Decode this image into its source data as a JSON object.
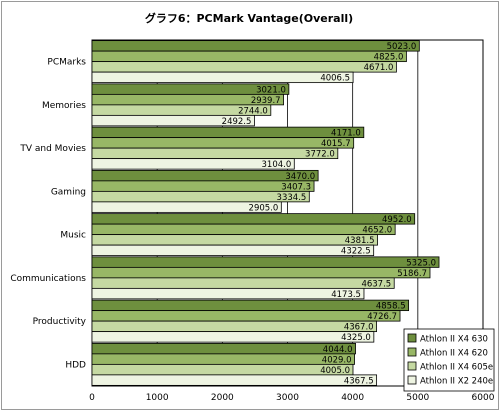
{
  "chart_data": {
    "type": "bar",
    "orientation": "horizontal",
    "title": "グラフ6：PCMark Vantage(Overall)",
    "categories": [
      "PCMarks",
      "Memories",
      "TV and Movies",
      "Gaming",
      "Music",
      "Communications",
      "Productivity",
      "HDD"
    ],
    "series": [
      {
        "name": "Athlon II X4 630",
        "color": "#6e8f3e",
        "values": [
          5023.0,
          3021.0,
          4171.0,
          3470.0,
          4952.0,
          5325.0,
          4858.5,
          4044.0
        ]
      },
      {
        "name": "Athlon II X4 620",
        "color": "#98b766",
        "values": [
          4825.0,
          2939.7,
          4015.7,
          3407.3,
          4652.0,
          5186.7,
          4726.7,
          4029.0
        ]
      },
      {
        "name": "Athlon II X4 605e",
        "color": "#c5d9a2",
        "values": [
          4671.0,
          2744.0,
          3772.0,
          3334.5,
          4381.5,
          4637.5,
          4367.0,
          4005.0
        ]
      },
      {
        "name": "Athlon II X2 240e",
        "color": "#eef4e2",
        "values": [
          4006.5,
          2492.5,
          3104.0,
          2905.0,
          4322.5,
          4173.5,
          4325.0,
          4367.5
        ]
      }
    ],
    "value_labels": [
      [
        "5023.0",
        "3021.0",
        "4171.0",
        "3470.0",
        "4952.0",
        "5325.0",
        "4858.5",
        "4044.0"
      ],
      [
        "4825.0",
        "2939.7",
        "4015.7",
        "3407.3",
        "4652.0",
        "5186.7",
        "4726.7",
        "4029.0"
      ],
      [
        "4671.0",
        "2744.0",
        "3772.0",
        "3334.5",
        "4381.5",
        "4637.5",
        "4367.0",
        "4005.0"
      ],
      [
        "4006.5",
        "2492.5",
        "3104.0",
        "2905.0",
        "4322.5",
        "4173.5",
        "4325.0",
        "4367.5"
      ]
    ],
    "xlim": [
      0,
      6000
    ],
    "xticks": [
      0,
      1000,
      2000,
      3000,
      4000,
      5000,
      6000
    ],
    "xtick_labels": [
      "0",
      "1000",
      "2000",
      "3000",
      "4000",
      "5000",
      "6000"
    ],
    "grid": true,
    "legend_position": "bottom-right",
    "plot_background": "#ffffff",
    "bar_border": "#000000"
  }
}
